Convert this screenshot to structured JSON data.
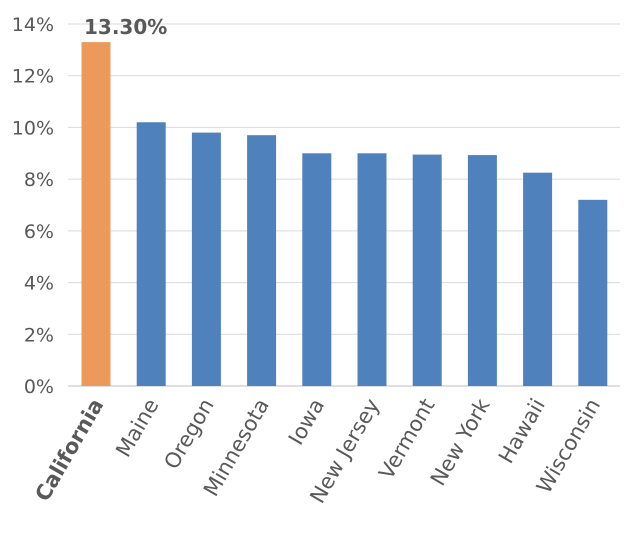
{
  "chart_data": {
    "type": "bar",
    "title": "",
    "xlabel": "",
    "ylabel": "",
    "categories": [
      "California",
      "Maine",
      "Oregon",
      "Minnesota",
      "Iowa",
      "New Jersey",
      "Vermont",
      "New York",
      "Hawaii",
      "Wisconsin"
    ],
    "values": [
      13.3,
      10.2,
      9.8,
      9.7,
      9.0,
      9.0,
      8.95,
      8.93,
      8.25,
      7.2
    ],
    "ylim": [
      0,
      14
    ],
    "yticks": [
      0,
      2,
      4,
      6,
      8,
      10,
      12,
      14
    ],
    "ytick_suffix": "%",
    "grid": true,
    "legend": "none",
    "highlight_index": 0,
    "highlight_label": "13.30%",
    "colors": {
      "bar": "#4f81bd",
      "highlight": "#eb9a5b",
      "grid": "#d9d9d9",
      "text": "#595959"
    }
  }
}
